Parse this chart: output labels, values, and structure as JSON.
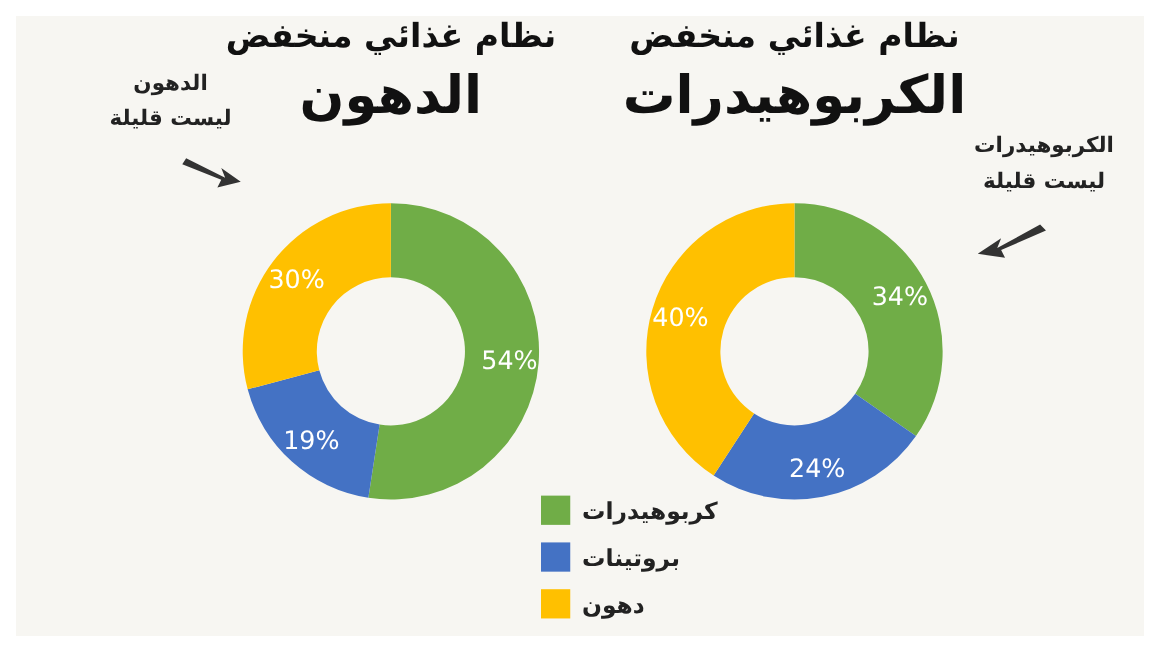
{
  "chart_data": [
    {
      "type": "donut",
      "title": "نظام غذائي منخفض",
      "subtitle": "الدهون",
      "categories": [
        "كربوهيدرات",
        "بروتينات",
        "دهون"
      ],
      "values": [
        54,
        19,
        30
      ],
      "value_labels": [
        "54%",
        "19%",
        "30%"
      ],
      "colors": [
        "#70ad47",
        "#4472c4",
        "#ffc000"
      ],
      "legend": "bottom",
      "annotations": [
        "الدهون ليست قليلة"
      ]
    },
    {
      "type": "donut",
      "title": "نظام غذائي منخفض",
      "subtitle": "الكربوهيدرات",
      "values": [
        34,
        24,
        40
      ],
      "value_labels": [
        "34%",
        "24%",
        "40%"
      ],
      "colors": [
        "#70ad47",
        "#4472c4",
        "#ffc000"
      ],
      "annotations": [
        "الكربوهيدرات ليست قليلة"
      ]
    }
  ]
}
